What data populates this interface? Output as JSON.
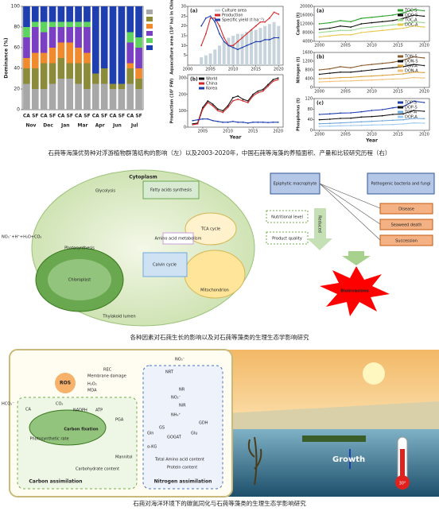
{
  "figure1": {
    "caption": "石莼等海藻优势种对浮游植物群落结构的影响（左）以及2003-2020年，中国石莼等海藻的养殖面积、产量和比较研究历程（右）",
    "dominance_chart": {
      "ylabel": "Dominance (%)",
      "ylim": [
        0,
        100
      ],
      "yticks": [
        0,
        20,
        40,
        60,
        80,
        100
      ],
      "categories": [
        "CA",
        "SF",
        "CA",
        "SF",
        "CA",
        "SF",
        "CA",
        "SF",
        "CA",
        "SF",
        "CA",
        "SF",
        "CA",
        "SF"
      ],
      "months": [
        "Nov",
        "Dec",
        "Jan",
        "Mar",
        "Apr",
        "Jun",
        "Jul"
      ],
      "series": [
        {
          "color": "#a8a8a8",
          "values": [
            25,
            20,
            20,
            25,
            30,
            30,
            25,
            20,
            25,
            25,
            20,
            20,
            25,
            20
          ]
        },
        {
          "color": "#8b8b3a",
          "values": [
            15,
            20,
            25,
            20,
            20,
            15,
            20,
            25,
            10,
            15,
            5,
            5,
            15,
            10
          ]
        },
        {
          "color": "#f08a2c",
          "values": [
            10,
            15,
            10,
            15,
            15,
            20,
            15,
            10,
            0,
            0,
            0,
            0,
            5,
            10
          ]
        },
        {
          "color": "#7b3fc4",
          "values": [
            20,
            25,
            20,
            20,
            15,
            15,
            20,
            25,
            0,
            0,
            0,
            0,
            20,
            20
          ]
        },
        {
          "color": "#5fd35f",
          "values": [
            10,
            5,
            10,
            5,
            5,
            5,
            5,
            5,
            0,
            0,
            0,
            0,
            10,
            10
          ]
        },
        {
          "color": "#1f3fb0",
          "values": [
            20,
            15,
            15,
            15,
            15,
            15,
            15,
            15,
            65,
            60,
            75,
            75,
            25,
            30
          ]
        }
      ]
    },
    "china_charts": [
      {
        "label": "(a)",
        "ylabel": "Aquaculture area (10³ ha) in China",
        "x": [
          2003,
          2004,
          2005,
          2006,
          2007,
          2008,
          2009,
          2010,
          2011,
          2012,
          2013,
          2014,
          2015,
          2016,
          2017,
          2018,
          2019,
          2020
        ],
        "xlim": [
          2000,
          2021
        ],
        "xticks": [
          2000,
          2005,
          2010,
          2015,
          2020
        ],
        "ylim": [
          0,
          30
        ],
        "yticks": [
          5,
          10,
          15,
          20,
          25,
          30
        ],
        "series": [
          {
            "name": "Culture area",
            "color": "#c8d4dc",
            "style": "bar",
            "values": [
              4,
              5,
              6,
              8,
              10,
              12,
              14,
              15,
              16,
              16,
              17,
              18,
              18,
              19,
              20,
              21,
              22,
              20
            ]
          },
          {
            "name": "Production",
            "color": "#d62728",
            "values": [
              10,
              16,
              24,
              24,
              20,
              14,
              10,
              10,
              12,
              14,
              16,
              18,
              20,
              22,
              22,
              24,
              27,
              26
            ]
          },
          {
            "name": "Specific yield (t ha⁻¹)",
            "color": "#1f3fb0",
            "values": [
              20,
              24,
              25,
              22,
              16,
              12,
              10,
              9,
              8,
              9,
              10,
              11,
              12,
              12,
              13,
              13,
              14,
              14
            ]
          }
        ]
      },
      {
        "label": "(b)",
        "ylabel": "Production (10³ FW)",
        "xlabel": "Year",
        "x": [
          2003,
          2004,
          2005,
          2006,
          2007,
          2008,
          2009,
          2010,
          2011,
          2012,
          2013,
          2014,
          2015,
          2016,
          2017,
          2018,
          2019,
          2020
        ],
        "xlim": [
          2002,
          2021
        ],
        "xticks": [
          2005,
          2010,
          2015,
          2020
        ],
        "ylim": [
          0,
          320
        ],
        "yticks": [
          0,
          100,
          200,
          300
        ],
        "series": [
          {
            "name": "World",
            "color": "#111111",
            "values": [
              20,
              25,
              120,
              160,
              140,
              110,
              100,
              130,
              180,
              190,
              170,
              160,
              200,
              220,
              230,
              260,
              290,
              300
            ]
          },
          {
            "name": "China",
            "color": "#d62728",
            "values": [
              15,
              20,
              110,
              150,
              130,
              100,
              90,
              120,
              160,
              170,
              160,
              150,
              190,
              210,
              220,
              250,
              280,
              290
            ]
          },
          {
            "name": "Korea",
            "color": "#1f3fb0",
            "values": [
              40,
              45,
              50,
              50,
              40,
              35,
              30,
              30,
              35,
              30,
              30,
              25,
              30,
              30,
              30,
              28,
              30,
              30
            ]
          }
        ]
      }
    ],
    "nutrient_charts": [
      {
        "label": "(a)",
        "ylabel": "Carbon (t)",
        "x": [
          2000,
          2002,
          2004,
          2006,
          2008,
          2010,
          2012,
          2014,
          2016,
          2018,
          2020
        ],
        "xlim": [
          1999,
          2021
        ],
        "xticks": [
          2000,
          2005,
          2010,
          2015,
          2020
        ],
        "ylim": [
          4000,
          20000
        ],
        "yticks": [
          4000,
          8000,
          12000,
          16000,
          20000
        ],
        "series": [
          {
            "name": "TOC-S",
            "color": "#2ca02c",
            "values": [
              12000,
              12500,
              13500,
              13000,
              14500,
              15000,
              15500,
              16000,
              17000,
              18500,
              18000
            ]
          },
          {
            "name": "DOC-S",
            "color": "#111111",
            "values": [
              9500,
              10000,
              11000,
              10500,
              12000,
              12500,
              13000,
              13500,
              14500,
              16000,
              15500
            ]
          },
          {
            "name": "TOC-A",
            "color": "#98d98e",
            "values": [
              8000,
              8500,
              9000,
              9000,
              10000,
              10500,
              11000,
              11500,
              12000,
              13000,
              12500
            ]
          },
          {
            "name": "DOC-A",
            "color": "#e6c84a",
            "values": [
              6000,
              6500,
              7000,
              7000,
              8000,
              8500,
              9000,
              9500,
              10000,
              11000,
              10500
            ]
          }
        ]
      },
      {
        "label": "(b)",
        "ylabel": "Nitrogen (t)",
        "x": [
          2000,
          2002,
          2004,
          2006,
          2008,
          2010,
          2012,
          2014,
          2016,
          2018,
          2020
        ],
        "xlim": [
          1999,
          2021
        ],
        "xticks": [
          2000,
          2005,
          2010,
          2015,
          2020
        ],
        "ylim": [
          0,
          1600
        ],
        "yticks": [
          0,
          400,
          800,
          1200,
          1600
        ],
        "series": [
          {
            "name": "TON-S",
            "color": "#8b5a2b",
            "values": [
              800,
              850,
              950,
              900,
              1000,
              1050,
              1100,
              1150,
              1250,
              1400,
              1350
            ]
          },
          {
            "name": "DON-S",
            "color": "#111111",
            "values": [
              600,
              650,
              700,
              700,
              750,
              800,
              850,
              900,
              950,
              1050,
              1000
            ]
          },
          {
            "name": "TON-A",
            "color": "#d9a441",
            "values": [
              400,
              420,
              450,
              460,
              500,
              520,
              550,
              580,
              620,
              700,
              680
            ]
          },
          {
            "name": "DON-A",
            "color": "#f2c27a",
            "values": [
              250,
              270,
              290,
              300,
              320,
              340,
              360,
              380,
              400,
              450,
              430
            ]
          }
        ]
      },
      {
        "label": "(c)",
        "ylabel": "Phosphorus (t)",
        "xlabel": "Year",
        "x": [
          2000,
          2002,
          2004,
          2006,
          2008,
          2010,
          2012,
          2014,
          2016,
          2018,
          2020
        ],
        "xlim": [
          1999,
          2021
        ],
        "xticks": [
          2000,
          2005,
          2010,
          2015,
          2020
        ],
        "ylim": [
          0,
          120
        ],
        "yticks": [
          0,
          40,
          80,
          120
        ],
        "series": [
          {
            "name": "TOP-S",
            "color": "#1f3fb0",
            "values": [
              60,
              62,
              65,
              66,
              70,
              75,
              78,
              85,
              90,
              110,
              105
            ]
          },
          {
            "name": "DOP-S",
            "color": "#111111",
            "values": [
              40,
              42,
              45,
              46,
              50,
              52,
              55,
              60,
              62,
              75,
              72
            ]
          },
          {
            "name": "TOP-A",
            "color": "#6fa8dc",
            "values": [
              25,
              26,
              28,
              30,
              32,
              34,
              36,
              38,
              40,
              45,
              44
            ]
          },
          {
            "name": "DOP-A",
            "color": "#9ec9f0",
            "values": [
              15,
              16,
              17,
              18,
              19,
              20,
              21,
              22,
              24,
              28,
              27
            ]
          }
        ]
      }
    ]
  },
  "figure2": {
    "caption": "各种因素对石莼生长的影响以及对石莼等藻类的生理生态学影响研究",
    "cell": {
      "cytoplasm": "Cytoplasm",
      "glycolysis": "Glycolysis",
      "fatty_acids": "Fatty acids synthesis",
      "tca": "TCA cycle",
      "amino": "Amino acid metabolism",
      "mito": "Mitochondrion",
      "chloroplast": "Chloroplast",
      "calvin": "Calvin cycle",
      "thylakoid": "Thylakoid lumen",
      "photosynthesis": "Photosynthesis",
      "equation": "NO₃⁻+H⁺+H₂O+CO₂"
    },
    "flow": {
      "epiphytic": "Epiphytic macrophyte",
      "pathogen": "Pathogenic bacteria and fungi",
      "nutrition": "Nutritional level",
      "quality": "Product quality",
      "reduced": "Reduced",
      "disease": "Disease",
      "death": "Seaweed death",
      "succession": "Succession",
      "star": "Bioinvasions"
    }
  },
  "figure3": {
    "caption": "石莼对海洋环境下的碳氮同化与石莼等藻类的生理生态学影响研究",
    "labels": {
      "ros": "ROS",
      "rec": "REC",
      "membrane": "Membrane damage",
      "h2o2": "H₂O₂",
      "mda": "MDA",
      "hco3": "HCO₃⁻",
      "co2": "CO₂",
      "ca": "CA",
      "nadph": "NADPH",
      "atp": "ATP",
      "pga": "PGA",
      "fixation": "Carbon fixation",
      "photo": "Photosynthetic rate",
      "mannitol": "Mannitol",
      "carbohydrate": "Carbohydrate content",
      "carbon": "Carbon assimilation",
      "no3": "NO₃⁻",
      "nrt": "NRT",
      "nr": "NR",
      "no2": "NO₂⁻",
      "nir": "NiR",
      "nh4": "NH₄⁺",
      "gs": "GS",
      "gogat": "GOGAT",
      "gdh": "GDH",
      "gln": "Gln",
      "glu": "Glu",
      "akg": "α-KG",
      "amino": "Total Amino acid content",
      "protein": "Protein content",
      "nitrogen": "Nitrogen assimilation",
      "growth": "Growth",
      "temp": "30°"
    }
  }
}
